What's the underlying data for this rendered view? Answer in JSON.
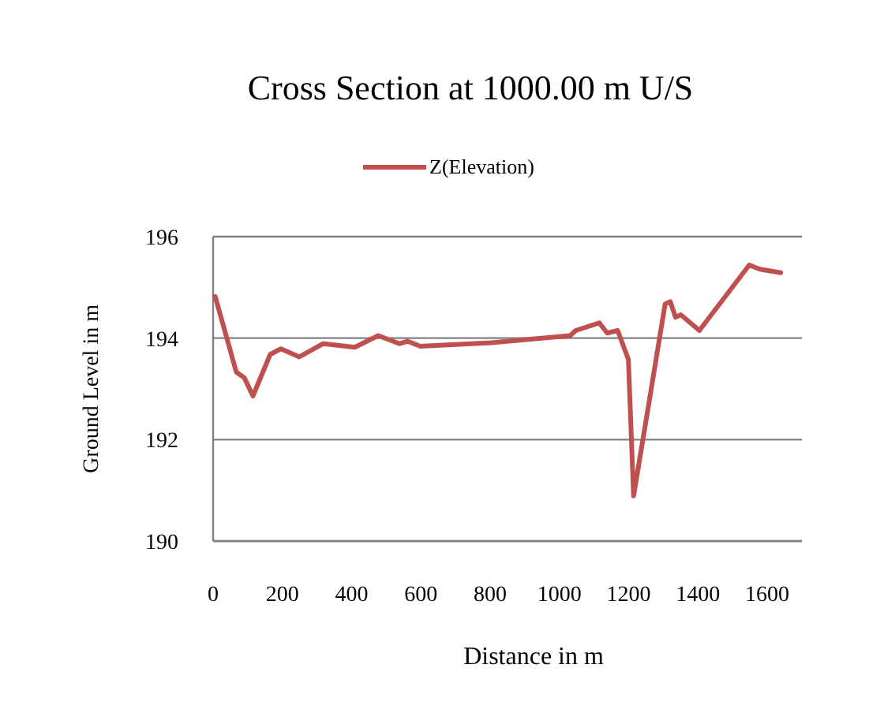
{
  "chart_data": {
    "type": "line",
    "title": "Cross Section at 1000.00 m U/S",
    "xlabel": "Distance in m",
    "ylabel": "Ground Level in m",
    "x": [
      6,
      67,
      90,
      115,
      165,
      196,
      249,
      318,
      409,
      477,
      538,
      561,
      598,
      804,
      1031,
      1047,
      1115,
      1138,
      1168,
      1199,
      1214,
      1259,
      1305,
      1320,
      1335,
      1350,
      1404,
      1548,
      1578,
      1639
    ],
    "series": [
      {
        "name": "Z(Elevation)",
        "color": "#c0504d",
        "values": [
          194.82,
          193.33,
          193.22,
          192.86,
          193.68,
          193.79,
          193.63,
          193.89,
          193.82,
          194.05,
          193.89,
          193.94,
          193.84,
          193.91,
          194.05,
          194.15,
          194.3,
          194.1,
          194.15,
          193.58,
          190.89,
          192.75,
          194.67,
          194.72,
          194.41,
          194.46,
          194.15,
          195.44,
          195.36,
          195.29
        ]
      }
    ],
    "xlim": [
      0,
      1700
    ],
    "xticks": [
      0,
      200,
      400,
      600,
      800,
      1000,
      1200,
      1400,
      1600
    ],
    "ylim": [
      190,
      196
    ],
    "yticks": [
      190,
      192,
      194,
      196
    ],
    "grid": "y",
    "legend": "top",
    "marker": "none",
    "line_style": "solid"
  }
}
